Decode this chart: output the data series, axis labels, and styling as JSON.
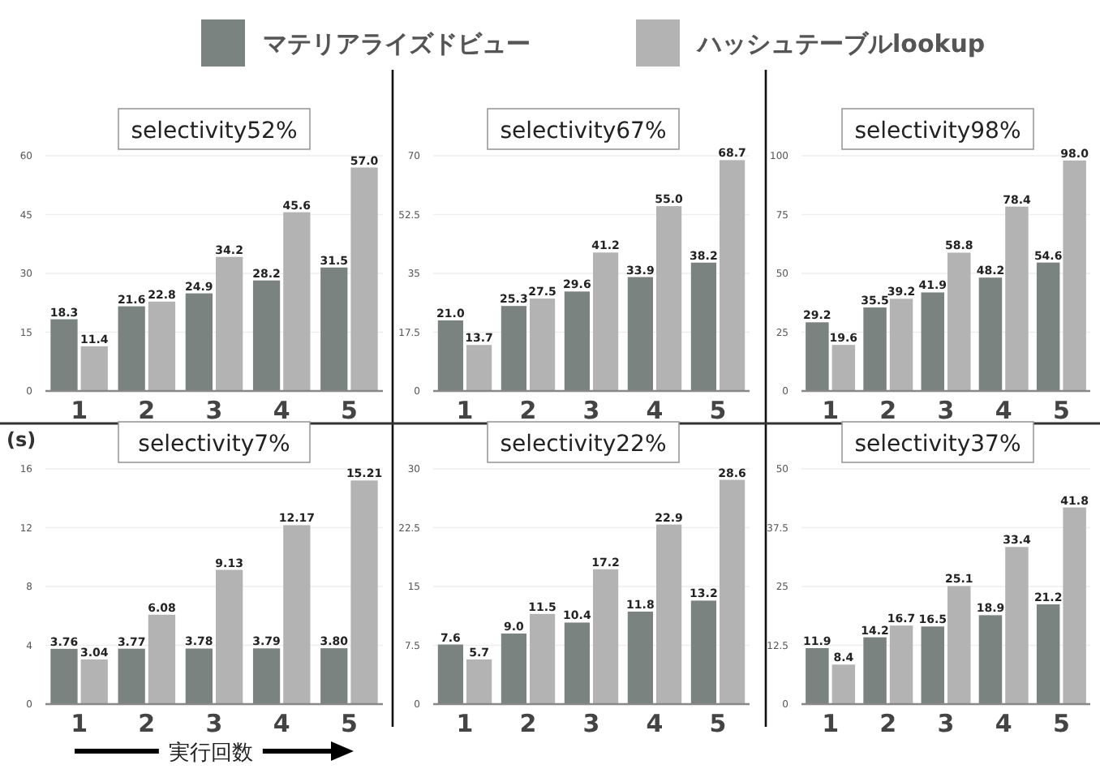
{
  "chart_data": [
    {
      "type": "bar",
      "title": "selectivity52%",
      "categories": [
        "1",
        "2",
        "3",
        "4",
        "5"
      ],
      "legend": "top",
      "grid": "y",
      "ylim": [
        0,
        60
      ],
      "yticks": [
        0,
        15,
        30,
        45,
        60
      ],
      "series": [
        {
          "name": "マテリアライズドビュー",
          "color": "#7a8380",
          "values": [
            18.3,
            21.6,
            24.9,
            28.2,
            31.5
          ],
          "value_labels": [
            "18.3",
            "21.6",
            "24.9",
            "28.2",
            "31.5"
          ]
        },
        {
          "name": "ハッシュテーブルlookup",
          "color": "#b3b3b3",
          "values": [
            11.4,
            22.8,
            34.2,
            45.6,
            57.0
          ],
          "value_labels": [
            "11.4",
            "22.8",
            "34.2",
            "45.6",
            "57.0"
          ]
        }
      ]
    },
    {
      "type": "bar",
      "title": "selectivity67%",
      "categories": [
        "1",
        "2",
        "3",
        "4",
        "5"
      ],
      "grid": "y",
      "ylim": [
        0,
        70
      ],
      "yticks": [
        0,
        17.5,
        35,
        52.5,
        70
      ],
      "series": [
        {
          "color": "#7a8380",
          "values": [
            21.0,
            25.3,
            29.6,
            33.9,
            38.2
          ],
          "value_labels": [
            "21.0",
            "25.3",
            "29.6",
            "33.9",
            "38.2"
          ]
        },
        {
          "color": "#b3b3b3",
          "values": [
            13.7,
            27.5,
            41.2,
            55.0,
            68.7
          ],
          "value_labels": [
            "13.7",
            "27.5",
            "41.2",
            "55.0",
            "68.7"
          ]
        }
      ]
    },
    {
      "type": "bar",
      "title": "selectivity98%",
      "categories": [
        "1",
        "2",
        "3",
        "4",
        "5"
      ],
      "grid": "y",
      "ylim": [
        0,
        100
      ],
      "yticks": [
        0,
        25,
        50,
        75,
        100
      ],
      "series": [
        {
          "color": "#7a8380",
          "values": [
            29.2,
            35.5,
            41.9,
            48.2,
            54.6
          ],
          "value_labels": [
            "29.2",
            "35.5",
            "41.9",
            "48.2",
            "54.6"
          ]
        },
        {
          "color": "#b3b3b3",
          "values": [
            19.6,
            39.2,
            58.8,
            78.4,
            98.0
          ],
          "value_labels": [
            "19.6",
            "39.2",
            "58.8",
            "78.4",
            "98.0"
          ]
        }
      ]
    },
    {
      "type": "bar",
      "title": "selectivity7%",
      "ylabel": "(s)",
      "xlabel": "実行回数",
      "categories": [
        "1",
        "2",
        "3",
        "4",
        "5"
      ],
      "grid": "y",
      "ylim": [
        0,
        16
      ],
      "yticks": [
        0,
        4,
        8,
        12,
        16
      ],
      "series": [
        {
          "color": "#7a8380",
          "values": [
            3.76,
            3.77,
            3.78,
            3.79,
            3.8
          ],
          "value_labels": [
            "3.76",
            "3.77",
            "3.78",
            "3.79",
            "3.80"
          ]
        },
        {
          "color": "#b3b3b3",
          "values": [
            3.04,
            6.08,
            9.13,
            12.17,
            15.21
          ],
          "value_labels": [
            "3.04",
            "6.08",
            "9.13",
            "12.17",
            "15.21"
          ]
        }
      ]
    },
    {
      "type": "bar",
      "title": "selectivity22%",
      "categories": [
        "1",
        "2",
        "3",
        "4",
        "5"
      ],
      "grid": "y",
      "ylim": [
        0,
        30
      ],
      "yticks": [
        0,
        7.5,
        15,
        22.5,
        30
      ],
      "series": [
        {
          "color": "#7a8380",
          "values": [
            7.6,
            9.0,
            10.4,
            11.8,
            13.2
          ],
          "value_labels": [
            "7.6",
            "9.0",
            "10.4",
            "11.8",
            "13.2"
          ]
        },
        {
          "color": "#b3b3b3",
          "values": [
            5.7,
            11.5,
            17.2,
            22.9,
            28.6
          ],
          "value_labels": [
            "5.7",
            "11.5",
            "17.2",
            "22.9",
            "28.6"
          ]
        }
      ]
    },
    {
      "type": "bar",
      "title": "selectivity37%",
      "categories": [
        "1",
        "2",
        "3",
        "4",
        "5"
      ],
      "grid": "y",
      "ylim": [
        0,
        50
      ],
      "yticks": [
        0,
        12.5,
        25,
        37.5,
        50
      ],
      "series": [
        {
          "color": "#7a8380",
          "values": [
            11.9,
            14.2,
            16.5,
            18.9,
            21.2
          ],
          "value_labels": [
            "11.9",
            "14.2",
            "16.5",
            "18.9",
            "21.2"
          ]
        },
        {
          "color": "#b3b3b3",
          "values": [
            8.4,
            16.7,
            25.1,
            33.4,
            41.8
          ],
          "value_labels": [
            "8.4",
            "16.7",
            "25.1",
            "33.4",
            "41.8"
          ]
        }
      ]
    }
  ]
}
